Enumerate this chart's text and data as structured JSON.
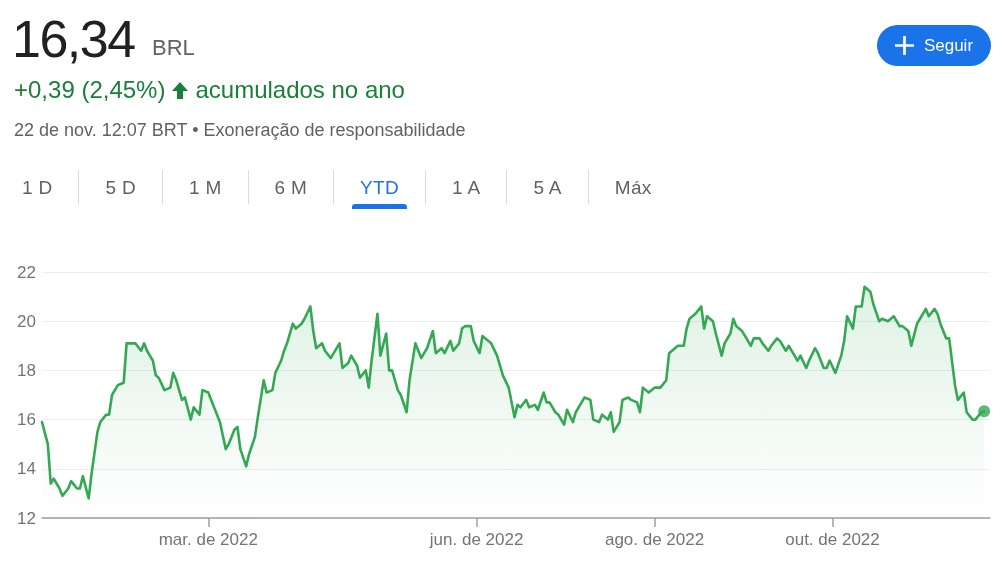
{
  "chart_data": {
    "type": "area",
    "title": "16,34",
    "annotations": [
      "BRL",
      "+0,39 (2,45%)",
      "acumulados no ano",
      "22 de nov. 12:07 BRT • Exoneração de responsabilidade",
      "1 D",
      "5 D",
      "1 M",
      "6 M",
      "YTD",
      "1 A",
      "5 A",
      "Máx",
      "Seguir"
    ],
    "x": [
      "2022-01-03",
      "2022-01-05",
      "2022-01-06",
      "2022-01-07",
      "2022-01-09",
      "2022-01-10",
      "2022-01-12",
      "2022-01-13",
      "2022-01-15",
      "2022-01-16",
      "2022-01-17",
      "2022-01-19",
      "2022-01-20",
      "2022-01-22",
      "2022-01-23",
      "2022-01-25",
      "2022-01-26",
      "2022-01-27",
      "2022-01-29",
      "2022-01-31",
      "2022-02-01",
      "2022-02-02",
      "2022-02-03",
      "2022-02-04",
      "2022-02-06",
      "2022-02-07",
      "2022-02-08",
      "2022-02-10",
      "2022-02-11",
      "2022-02-12",
      "2022-02-14",
      "2022-02-16",
      "2022-02-17",
      "2022-02-18",
      "2022-02-20",
      "2022-02-21",
      "2022-02-23",
      "2022-02-24",
      "2022-02-26",
      "2022-02-27",
      "2022-03-01",
      "2022-03-02",
      "2022-03-04",
      "2022-03-05",
      "2022-03-07",
      "2022-03-08",
      "2022-03-10",
      "2022-03-11",
      "2022-03-12",
      "2022-03-14",
      "2022-03-15",
      "2022-03-17",
      "2022-03-18",
      "2022-03-20",
      "2022-03-21",
      "2022-03-23",
      "2022-03-24",
      "2022-03-26",
      "2022-03-27",
      "2022-03-28",
      "2022-03-30",
      "2022-03-31",
      "2022-04-02",
      "2022-04-03",
      "2022-04-05",
      "2022-04-06",
      "2022-04-07",
      "2022-04-09",
      "2022-04-10",
      "2022-04-12",
      "2022-04-13",
      "2022-04-15",
      "2022-04-16",
      "2022-04-18",
      "2022-04-19",
      "2022-04-21",
      "2022-04-22",
      "2022-04-24",
      "2022-04-25",
      "2022-04-26",
      "2022-04-28",
      "2022-04-29",
      "2022-05-01",
      "2022-05-02",
      "2022-05-03",
      "2022-05-05",
      "2022-05-06",
      "2022-05-08",
      "2022-05-09",
      "2022-05-11",
      "2022-05-13",
      "2022-05-14",
      "2022-05-15",
      "2022-05-17",
      "2022-05-18",
      "2022-05-20",
      "2022-05-21",
      "2022-05-23",
      "2022-05-24",
      "2022-05-26",
      "2022-05-27",
      "2022-05-28",
      "2022-05-30",
      "2022-05-31",
      "2022-06-02",
      "2022-06-03",
      "2022-06-05",
      "2022-06-06",
      "2022-06-08",
      "2022-06-09",
      "2022-06-10",
      "2022-06-12",
      "2022-06-14",
      "2022-06-15",
      "2022-06-16",
      "2022-06-18",
      "2022-06-19",
      "2022-06-21",
      "2022-06-22",
      "2022-06-24",
      "2022-06-25",
      "2022-06-26",
      "2022-06-28",
      "2022-06-29",
      "2022-07-01",
      "2022-07-02",
      "2022-07-04",
      "2022-07-05",
      "2022-07-07",
      "2022-07-08",
      "2022-07-10",
      "2022-07-11",
      "2022-07-13",
      "2022-07-14",
      "2022-07-16",
      "2022-07-17",
      "2022-07-18",
      "2022-07-20",
      "2022-07-21",
      "2022-07-23",
      "2022-07-24",
      "2022-07-26",
      "2022-07-27",
      "2022-07-28",
      "2022-07-30",
      "2022-08-01",
      "2022-08-02",
      "2022-08-03",
      "2022-08-05",
      "2022-08-06",
      "2022-08-08",
      "2022-08-09",
      "2022-08-11",
      "2022-08-12",
      "2022-08-13",
      "2022-08-15",
      "2022-08-17",
      "2022-08-18",
      "2022-08-19",
      "2022-08-21",
      "2022-08-22",
      "2022-08-24",
      "2022-08-25",
      "2022-08-27",
      "2022-08-28",
      "2022-08-29",
      "2022-08-31",
      "2022-09-01",
      "2022-09-03",
      "2022-09-04",
      "2022-09-06",
      "2022-09-07",
      "2022-09-09",
      "2022-09-10",
      "2022-09-12",
      "2022-09-13",
      "2022-09-15",
      "2022-09-16",
      "2022-09-18",
      "2022-09-19",
      "2022-09-20",
      "2022-09-22",
      "2022-09-23",
      "2022-09-25",
      "2022-09-26",
      "2022-09-28",
      "2022-09-29",
      "2022-09-30",
      "2022-10-02",
      "2022-10-04",
      "2022-10-05",
      "2022-10-06",
      "2022-10-08",
      "2022-10-09",
      "2022-10-11",
      "2022-10-12",
      "2022-10-14",
      "2022-10-15",
      "2022-10-17",
      "2022-10-18",
      "2022-10-20",
      "2022-10-21",
      "2022-10-22",
      "2022-10-24",
      "2022-10-25",
      "2022-10-27",
      "2022-10-28",
      "2022-10-30",
      "2022-10-31",
      "2022-11-02",
      "2022-11-03",
      "2022-11-05",
      "2022-11-06",
      "2022-11-07",
      "2022-11-09",
      "2022-11-10",
      "2022-11-12",
      "2022-11-13",
      "2022-11-15",
      "2022-11-16",
      "2022-11-18",
      "2022-11-19",
      "2022-11-21",
      "2022-11-22"
    ],
    "series": [
      {
        "color": "#34a853",
        "values": [
          15.9,
          15.0,
          13.4,
          13.6,
          13.2,
          12.9,
          13.2,
          13.5,
          13.2,
          13.2,
          13.7,
          12.8,
          13.8,
          15.5,
          15.9,
          16.2,
          16.2,
          17.0,
          17.4,
          17.5,
          19.1,
          19.1,
          19.1,
          19.1,
          18.8,
          19.1,
          18.8,
          18.4,
          17.8,
          17.7,
          17.2,
          17.3,
          17.9,
          17.6,
          16.8,
          16.9,
          16.0,
          16.5,
          16.2,
          17.2,
          17.1,
          16.8,
          16.2,
          15.9,
          14.8,
          15.0,
          15.6,
          15.7,
          14.8,
          14.1,
          14.6,
          15.3,
          16.1,
          17.6,
          17.1,
          17.2,
          17.9,
          18.4,
          18.8,
          19.1,
          19.9,
          19.7,
          19.9,
          20.1,
          20.6,
          19.6,
          18.9,
          19.1,
          18.8,
          18.5,
          18.7,
          19.1,
          18.1,
          18.3,
          18.6,
          18.2,
          17.7,
          18.0,
          17.3,
          18.4,
          20.3,
          18.6,
          19.5,
          18.0,
          18.0,
          17.2,
          17.0,
          16.3,
          17.6,
          19.1,
          18.5,
          18.7,
          18.9,
          19.6,
          18.7,
          18.9,
          18.7,
          19.2,
          18.8,
          19.1,
          19.7,
          19.8,
          19.8,
          19.2,
          18.7,
          19.4,
          19.2,
          19.1,
          18.6,
          18.2,
          17.8,
          17.3,
          16.1,
          16.6,
          16.5,
          16.8,
          16.5,
          16.6,
          16.4,
          17.1,
          16.7,
          16.7,
          16.3,
          16.2,
          15.8,
          16.4,
          15.9,
          16.3,
          16.7,
          16.9,
          16.8,
          16.0,
          15.9,
          16.2,
          16.0,
          16.3,
          15.5,
          15.9,
          16.8,
          16.9,
          16.8,
          16.7,
          16.3,
          17.3,
          17.1,
          17.3,
          17.3,
          17.3,
          17.6,
          18.7,
          18.9,
          19.0,
          19.0,
          19.7,
          20.1,
          20.3,
          20.6,
          19.7,
          20.2,
          20.0,
          19.5,
          18.6,
          19.1,
          19.5,
          20.1,
          19.8,
          19.6,
          19.4,
          19.0,
          19.3,
          19.3,
          19.1,
          18.8,
          19.0,
          19.3,
          19.2,
          18.8,
          19.0,
          18.6,
          18.4,
          18.6,
          18.1,
          18.4,
          18.9,
          18.7,
          18.1,
          18.1,
          18.4,
          17.9,
          18.6,
          19.2,
          20.2,
          19.7,
          20.6,
          20.6,
          21.4,
          21.2,
          20.7,
          20.0,
          20.1,
          20.0,
          20.1,
          20.2,
          19.8,
          19.8,
          19.6,
          19.0,
          19.9,
          20.1,
          20.5,
          20.2,
          20.5,
          20.3,
          19.9,
          19.3,
          19.3,
          17.4,
          16.8,
          17.1,
          16.3,
          16.0,
          16.0,
          16.3,
          16.34
        ]
      },
      {
        "type": "scatter",
        "color": "#34a853",
        "marker": "circle",
        "x": [
          "2022-11-22"
        ],
        "values": [
          16.34
        ]
      }
    ],
    "xlim": [
      "2022-01-03",
      "2022-11-24"
    ],
    "xticks": [
      {
        "value": "2022-03-01",
        "label": "mar. de 2022"
      },
      {
        "value": "2022-06-01",
        "label": "jun. de 2022"
      },
      {
        "value": "2022-08-01",
        "label": "ago. de 2022"
      },
      {
        "value": "2022-10-01",
        "label": "out. de 2022"
      }
    ],
    "ylim": [
      12,
      22
    ],
    "yticks": [
      12,
      14,
      16,
      18,
      20,
      22
    ],
    "grid": "y",
    "marker": "none"
  }
}
